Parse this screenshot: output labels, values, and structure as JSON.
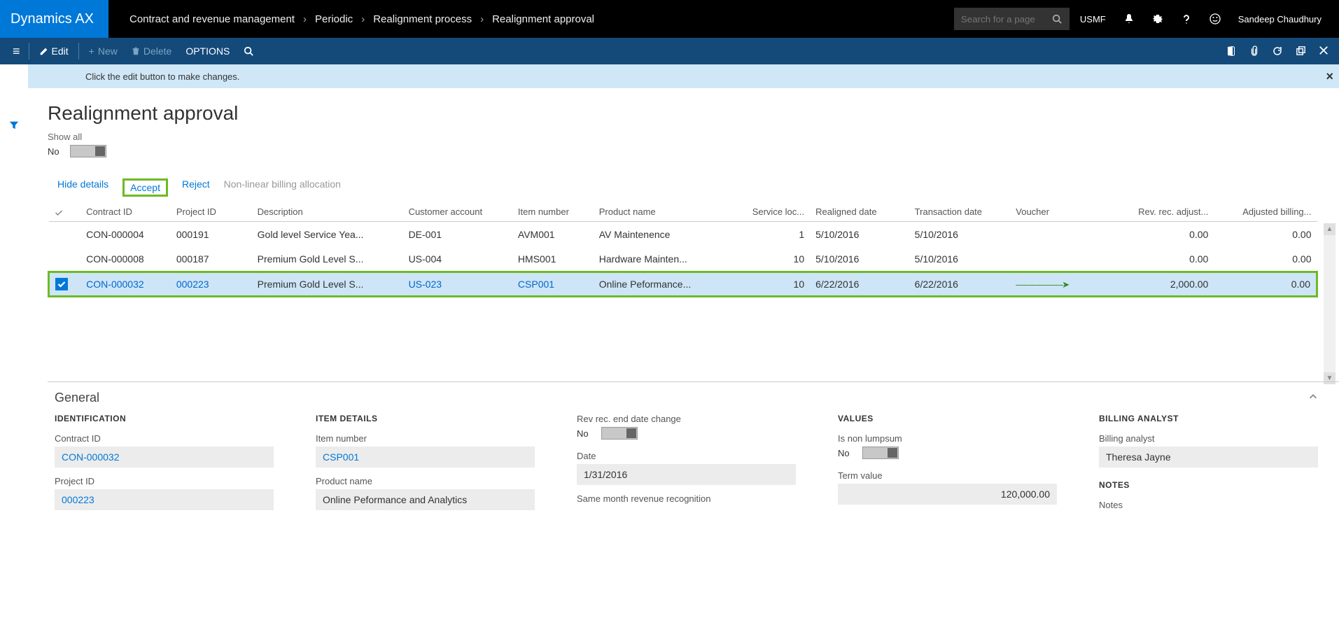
{
  "app": {
    "logo": "Dynamics AX"
  },
  "breadcrumb": [
    "Contract and revenue management",
    "Periodic",
    "Realignment process",
    "Realignment approval"
  ],
  "search": {
    "placeholder": "Search for a page"
  },
  "entity": "USMF",
  "user": "Sandeep Chaudhury",
  "actions": {
    "edit": "Edit",
    "new": "New",
    "delete": "Delete",
    "options": "OPTIONS"
  },
  "info": "Click the edit button to make changes.",
  "page": {
    "title": "Realignment approval",
    "showall_label": "Show all",
    "showall_value": "No"
  },
  "gridActions": {
    "hide": "Hide details",
    "accept": "Accept",
    "reject": "Reject",
    "nonlinear": "Non-linear billing allocation"
  },
  "columns": [
    "Contract ID",
    "Project ID",
    "Description",
    "Customer account",
    "Item number",
    "Product name",
    "Service loc...",
    "Realigned date",
    "Transaction date",
    "Voucher",
    "Rev. rec. adjust...",
    "Adjusted billing..."
  ],
  "rows": [
    {
      "sel": false,
      "cid": "CON-000004",
      "pid": "000191",
      "desc": "Gold level Service Yea...",
      "cust": "DE-001",
      "item": "AVM001",
      "prod": "AV Maintenence",
      "loc": "1",
      "rdate": "5/10/2016",
      "tdate": "5/10/2016",
      "vch": "",
      "rev": "0.00",
      "adj": "0.00"
    },
    {
      "sel": false,
      "cid": "CON-000008",
      "pid": "000187",
      "desc": "Premium Gold Level S...",
      "cust": "US-004",
      "item": "HMS001",
      "prod": "Hardware Mainten...",
      "loc": "10",
      "rdate": "5/10/2016",
      "tdate": "5/10/2016",
      "vch": "",
      "rev": "0.00",
      "adj": "0.00"
    },
    {
      "sel": true,
      "cid": "CON-000032",
      "pid": "000223",
      "desc": "Premium Gold Level S...",
      "cust": "US-023",
      "item": "CSP001",
      "prod": "Online Peformance...",
      "loc": "10",
      "rdate": "6/22/2016",
      "tdate": "6/22/2016",
      "vch": "",
      "rev": "2,000.00",
      "adj": "0.00"
    }
  ],
  "general": {
    "title": "General",
    "ident": {
      "head": "IDENTIFICATION",
      "cid_l": "Contract ID",
      "cid_v": "CON-000032",
      "pid_l": "Project ID",
      "pid_v": "000223"
    },
    "item": {
      "head": "ITEM DETAILS",
      "num_l": "Item number",
      "num_v": "CSP001",
      "name_l": "Product name",
      "name_v": "Online Peformance and Analytics"
    },
    "dates": {
      "end_l": "Rev rec. end date change",
      "end_v": "No",
      "date_l": "Date",
      "date_v": "1/31/2016",
      "same_l": "Same month revenue recognition"
    },
    "values": {
      "head": "VALUES",
      "lump_l": "Is non lumpsum",
      "lump_v": "No",
      "term_l": "Term value",
      "term_v": "120,000.00"
    },
    "analyst": {
      "head": "BILLING ANALYST",
      "ba_l": "Billing analyst",
      "ba_v": "Theresa Jayne",
      "notes_h": "NOTES",
      "notes_l": "Notes"
    }
  }
}
